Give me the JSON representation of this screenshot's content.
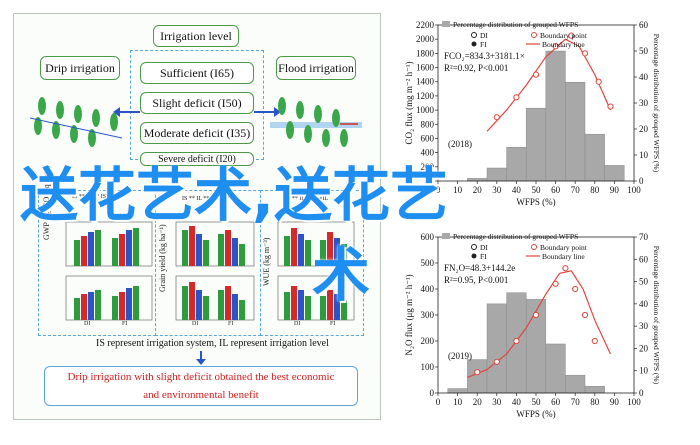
{
  "flowchart": {
    "irrigation_level_title": "Irrigation level",
    "levels": [
      "Sufficient (I65)",
      "Slight deficit (I50)",
      "Moderate deficit (I35)",
      "Severe deficit (I20)"
    ],
    "drip_label": "Drip irrigation",
    "flood_label": "Flood irrigation",
    "panel_ylabels": [
      "GWP (kg CO₂ eq ha⁻¹)",
      "Grain yield (kg ha⁻¹)",
      "WUE (kg m⁻³)"
    ],
    "sig_labels": [
      "IS ** IL ** IS×IL *",
      "IS ** IL ** IS×IL *",
      "IS ** IL ** IS×IL"
    ],
    "group_labels": [
      "DI",
      "FI"
    ],
    "note": "IS represent irrigation system, IL represent irrigation level",
    "result_line1": "Drip irrigation with slight deficit obtained the best economic",
    "result_line2": "and environmental benefit",
    "colors": {
      "green": "#2e9b3e",
      "red": "#d62a2a",
      "blue": "#2a55c8",
      "accent": "#4a9a4a"
    }
  },
  "chart_data": [
    {
      "type": "scatter",
      "panel_year": "(2018)",
      "title": "Percentage distribution of grouped WFPS",
      "equation": "FCO₂=834.3+3181.1×",
      "r2": "R²=0.92, P<0.001",
      "xlabel": "WFPS (%)",
      "ylabel": "CO₂ flux (mg m⁻² h⁻¹)",
      "ylabel_right": "Percentage distribution of grouped WFPS (%)",
      "xlim": [
        0,
        100
      ],
      "ylim": [
        0,
        2200
      ],
      "ylim_right": [
        0,
        60
      ],
      "xticks": [
        "0",
        "10",
        "20",
        "30",
        "40",
        "50",
        "60",
        "70",
        "80",
        "90",
        "100"
      ],
      "yticks": [
        "0",
        "200",
        "400",
        "600",
        "800",
        "1000",
        "1200",
        "1400",
        "1600",
        "1800",
        "2000",
        "2200"
      ],
      "yticks_right": [
        "0",
        "10",
        "20",
        "30",
        "40",
        "50",
        "60"
      ],
      "legend": [
        "DI",
        "FI",
        "Boundary point",
        "Boundary line"
      ],
      "histogram": {
        "x": [
          20,
          30,
          40,
          50,
          60,
          70,
          80,
          90
        ],
        "values": [
          1,
          5,
          13,
          28,
          50,
          38,
          18,
          6
        ]
      },
      "boundary_points": {
        "x": [
          30,
          40,
          50,
          60,
          68,
          75,
          82,
          88
        ],
        "y": [
          900,
          1180,
          1500,
          1900,
          2050,
          1800,
          1400,
          1050
        ]
      },
      "boundary_line": {
        "x": [
          25,
          35,
          45,
          55,
          65,
          72,
          80,
          88
        ],
        "y": [
          700,
          1000,
          1350,
          1750,
          2000,
          1900,
          1500,
          1000
        ]
      }
    },
    {
      "type": "scatter",
      "panel_year": "(2019)",
      "title": "Percentage distribution of grouped WFPS",
      "equation": "FN₂O=48.3+144.2e",
      "r2": "R²=0.95, P<0.001",
      "xlabel": "WFPS (%)",
      "ylabel": "N₂O flux (μg m⁻² h⁻¹)",
      "ylabel_right": "Percentage distribution of grouped WFPS (%)",
      "xlim": [
        0,
        100
      ],
      "ylim": [
        0,
        600
      ],
      "ylim_right": [
        0,
        70
      ],
      "xticks": [
        "0",
        "10",
        "20",
        "30",
        "40",
        "50",
        "60",
        "70",
        "80",
        "90",
        "100"
      ],
      "yticks": [
        "0",
        "100",
        "200",
        "300",
        "400",
        "500",
        "600"
      ],
      "yticks_right": [
        "0",
        "10",
        "20",
        "30",
        "40",
        "50",
        "60",
        "70"
      ],
      "legend": [
        "DI",
        "FI",
        "Boundary point",
        "Boundary line"
      ],
      "histogram": {
        "x": [
          10,
          20,
          30,
          40,
          50,
          60,
          70,
          80
        ],
        "values": [
          2,
          15,
          40,
          45,
          42,
          22,
          8,
          3
        ]
      },
      "boundary_points": {
        "x": [
          20,
          30,
          40,
          50,
          60,
          65,
          70,
          75,
          80
        ],
        "y": [
          80,
          120,
          200,
          300,
          420,
          480,
          400,
          300,
          200
        ]
      },
      "boundary_line": {
        "x": [
          15,
          25,
          35,
          45,
          55,
          62,
          68,
          74,
          80,
          88
        ],
        "y": [
          60,
          90,
          150,
          250,
          380,
          460,
          470,
          400,
          280,
          150
        ]
      }
    }
  ],
  "overlay": {
    "line1": "送花艺术,送花艺",
    "line2": "术"
  }
}
